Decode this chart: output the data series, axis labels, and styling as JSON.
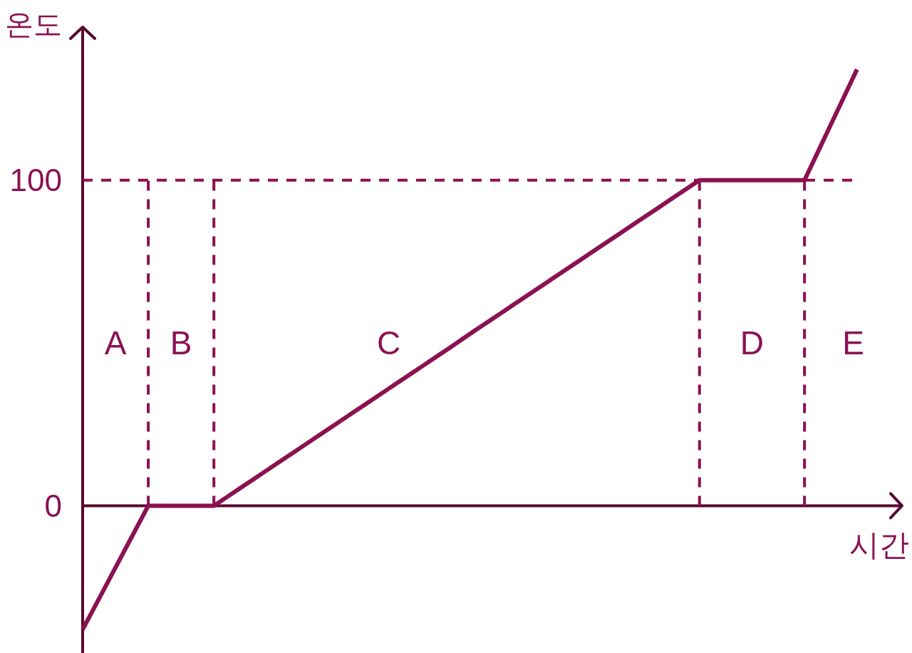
{
  "chart_data": {
    "type": "line",
    "xlabel": "시간",
    "ylabel": "온도",
    "categories": [
      null,
      null,
      null,
      null,
      null,
      null,
      null,
      null,
      null,
      null,
      null,
      null,
      null,
      null,
      null,
      null,
      null,
      null,
      null,
      null,
      null,
      null,
      null,
      null,
      null,
      null,
      null,
      null,
      null,
      null,
      null,
      null,
      null,
      null,
      null,
      null,
      null,
      null,
      null,
      null,
      null,
      null,
      null,
      null,
      null,
      null,
      null,
      null,
      null,
      null,
      null,
      null,
      null,
      null,
      null,
      null,
      null,
      null,
      null,
      null
    ],
    "series": [
      {
        "color": "#8b1152",
        "values": [
          -38,
          -30.4,
          -22.8,
          -15.2,
          -7.6,
          0,
          0,
          0,
          0,
          0,
          0,
          2.7,
          5.4,
          8.1,
          10.8,
          13.5,
          16.2,
          18.9,
          21.6,
          24.3,
          27,
          29.7,
          32.4,
          35.1,
          37.8,
          40.5,
          43.2,
          45.9,
          48.6,
          51.4,
          54.1,
          56.8,
          59.5,
          62.2,
          64.9,
          67.6,
          70.3,
          73,
          75.7,
          78.4,
          81.1,
          83.8,
          86.5,
          89.2,
          91.9,
          94.6,
          97.3,
          100,
          100,
          100,
          100,
          100,
          100,
          100,
          100,
          100,
          108.5,
          117,
          125.5,
          134
        ]
      }
    ],
    "ylim": [
      -45,
      147
    ],
    "yticks": [
      0,
      100
    ],
    "tick_labels": "y",
    "ref_lines": [
      {
        "axis": "y",
        "value": 0,
        "color": "#560a31",
        "line_style": "solid"
      },
      {
        "axis": "y",
        "value": 100,
        "color": "#8b1152",
        "line_style": "dashed"
      }
    ],
    "annotations": [
      "A",
      "B",
      "C",
      "D",
      "E"
    ]
  }
}
